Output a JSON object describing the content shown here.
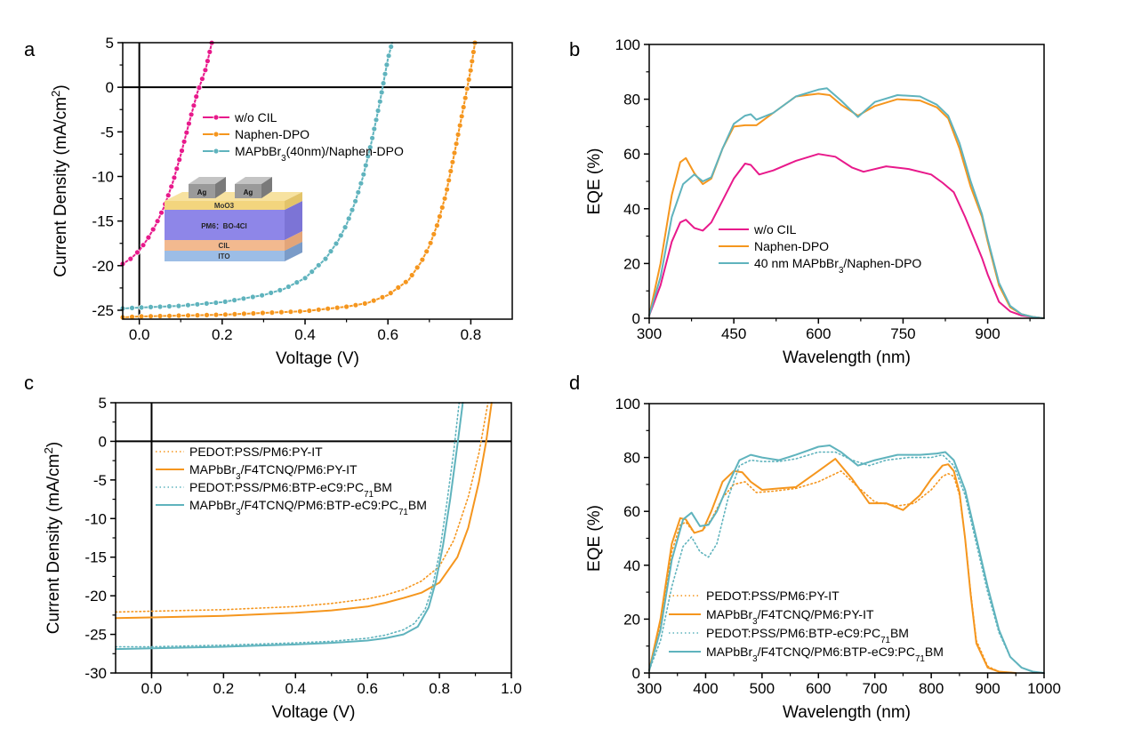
{
  "colors": {
    "pink": "#e8198b",
    "orange": "#f5961e",
    "teal": "#5fb3bd",
    "black": "#000000",
    "inset_ag": "#9a9a9a",
    "inset_moo3": "#f3d57e",
    "inset_active": "#8e86e8",
    "inset_cil": "#f2b98f",
    "inset_ito": "#9cbde6"
  },
  "panels": {
    "a": {
      "letter": "a"
    },
    "b": {
      "letter": "b"
    },
    "c": {
      "letter": "c"
    },
    "d": {
      "letter": "d"
    }
  },
  "inset": {
    "ag_left": "Ag",
    "ag_right": "Ag",
    "moo3": "MoO3",
    "active": "PM6：BO-4Cl",
    "cil": "CIL",
    "ito": "ITO"
  },
  "chart_data": [
    {
      "id": "a",
      "type": "line",
      "xlabel": "Voltage (V)",
      "ylabel": "Current Density (mA/cm²)",
      "xlim": [
        -0.04,
        0.9
      ],
      "ylim": [
        -26,
        5
      ],
      "xticks": [
        0.0,
        0.2,
        0.4,
        0.6,
        0.8
      ],
      "xtick_labels": [
        "0.0",
        "0.2",
        "0.4",
        "0.6",
        "0.8"
      ],
      "yticks": [
        5,
        0,
        -5,
        -10,
        -15,
        -20,
        -25
      ],
      "ytick_labels": [
        "5",
        "0",
        "-5",
        "-10",
        "-15",
        "-20",
        "-25"
      ],
      "legend_position": "center-left",
      "series": [
        {
          "name": "w/o CIL",
          "color_key": "pink",
          "markers": true,
          "x": [
            -0.04,
            -0.02,
            0.0,
            0.02,
            0.04,
            0.06,
            0.08,
            0.1,
            0.12,
            0.14,
            0.16,
            0.175
          ],
          "y": [
            -19.8,
            -19.2,
            -18.3,
            -17.0,
            -15.4,
            -13.4,
            -10.8,
            -7.6,
            -4.0,
            -0.6,
            2.0,
            5.0
          ]
        },
        {
          "name": "Naphen-DPO",
          "color_key": "orange",
          "markers": true,
          "x": [
            -0.04,
            0.0,
            0.1,
            0.2,
            0.3,
            0.4,
            0.5,
            0.55,
            0.6,
            0.65,
            0.68,
            0.7,
            0.72,
            0.74,
            0.76,
            0.78,
            0.8,
            0.81
          ],
          "y": [
            -25.8,
            -25.7,
            -25.6,
            -25.5,
            -25.3,
            -25.1,
            -24.6,
            -24.2,
            -23.3,
            -21.6,
            -19.6,
            -17.8,
            -15.3,
            -12.0,
            -7.5,
            -2.8,
            2.0,
            5.0
          ]
        },
        {
          "name": "MAPbBr₃(40nm)/Naphen-DPO",
          "color_key": "teal",
          "markers": true,
          "x": [
            -0.04,
            0.0,
            0.1,
            0.2,
            0.3,
            0.35,
            0.4,
            0.45,
            0.48,
            0.5,
            0.52,
            0.54,
            0.56,
            0.58,
            0.6,
            0.61
          ],
          "y": [
            -24.8,
            -24.7,
            -24.5,
            -24.1,
            -23.3,
            -22.6,
            -21.4,
            -19.2,
            -17.2,
            -15.4,
            -13.0,
            -10.0,
            -6.2,
            -1.8,
            3.2,
            5.0
          ]
        }
      ]
    },
    {
      "id": "b",
      "type": "line",
      "xlabel": "Wavelength (nm)",
      "ylabel": "EQE (%)",
      "xlim": [
        300,
        1000
      ],
      "ylim": [
        0,
        100
      ],
      "xticks": [
        300,
        450,
        600,
        750,
        900
      ],
      "xtick_labels": [
        "300",
        "450",
        "600",
        "750",
        "900"
      ],
      "yticks": [
        0,
        20,
        40,
        60,
        80,
        100
      ],
      "ytick_labels": [
        "0",
        "20",
        "40",
        "60",
        "80",
        "100"
      ],
      "legend_position": "bottom-left",
      "series": [
        {
          "name": "w/o CIL",
          "color_key": "pink",
          "x": [
            300,
            320,
            340,
            355,
            365,
            380,
            395,
            410,
            430,
            450,
            470,
            480,
            495,
            520,
            560,
            600,
            630,
            660,
            680,
            720,
            760,
            800,
            820,
            840,
            860,
            880,
            890,
            900,
            920,
            940,
            960,
            980,
            1000
          ],
          "y": [
            1,
            12,
            28,
            35,
            36,
            33,
            32,
            35,
            43,
            51,
            56.5,
            56,
            52.5,
            54,
            57.5,
            60,
            59,
            55,
            53.5,
            55.5,
            54.5,
            52.5,
            49.5,
            46,
            37,
            27,
            22,
            16,
            6,
            2.5,
            1,
            0.5,
            0
          ]
        },
        {
          "name": "Naphen-DPO",
          "color_key": "orange",
          "x": [
            300,
            320,
            340,
            355,
            365,
            380,
            395,
            410,
            430,
            450,
            470,
            490,
            520,
            560,
            600,
            620,
            640,
            670,
            700,
            740,
            780,
            810,
            830,
            850,
            870,
            890,
            900,
            920,
            940,
            960,
            980,
            1000
          ],
          "y": [
            1,
            20,
            45,
            57,
            58.5,
            53,
            49,
            51,
            62,
            70,
            70.5,
            70.5,
            75,
            81,
            82,
            81.5,
            78,
            74,
            77.5,
            80,
            79.5,
            77,
            73,
            62,
            48,
            37,
            28,
            12,
            4,
            1.5,
            0.5,
            0
          ]
        },
        {
          "name": "40 nm MAPbBr₃/Naphen-DPO",
          "color_key": "teal",
          "x": [
            300,
            320,
            340,
            360,
            380,
            395,
            410,
            430,
            450,
            470,
            480,
            490,
            520,
            560,
            600,
            615,
            640,
            670,
            700,
            740,
            780,
            810,
            830,
            850,
            870,
            890,
            900,
            920,
            940,
            960,
            980,
            1000
          ],
          "y": [
            1,
            15,
            37,
            49,
            52.5,
            50,
            51.5,
            62,
            71,
            74,
            74.5,
            72.5,
            75,
            81,
            83.5,
            84,
            79.5,
            73.5,
            79,
            81.5,
            81,
            78,
            74,
            64,
            50,
            38,
            29,
            13,
            4.5,
            1.5,
            0.5,
            0
          ]
        }
      ]
    },
    {
      "id": "c",
      "type": "line",
      "xlabel": "Voltage (V)",
      "ylabel": "Current Density (mA/cm²)",
      "xlim": [
        -0.1,
        1.0
      ],
      "ylim": [
        -30,
        5
      ],
      "xticks": [
        0.0,
        0.2,
        0.4,
        0.6,
        0.8,
        1.0
      ],
      "xtick_labels": [
        "0.0",
        "0.2",
        "0.4",
        "0.6",
        "0.8",
        "1.0"
      ],
      "yticks": [
        5,
        0,
        -5,
        -10,
        -15,
        -20,
        -25,
        -30
      ],
      "ytick_labels": [
        "5",
        "0",
        "-5",
        "-10",
        "-15",
        "-20",
        "-25",
        "-30"
      ],
      "legend_position": "top-left",
      "series": [
        {
          "name": "PEDOT:PSS/PM6:PY-IT",
          "color_key": "orange",
          "dotted": true,
          "x": [
            -0.1,
            0.0,
            0.1,
            0.2,
            0.3,
            0.4,
            0.5,
            0.6,
            0.65,
            0.7,
            0.75,
            0.8,
            0.84,
            0.88,
            0.91,
            0.935
          ],
          "y": [
            -22.1,
            -22.0,
            -21.9,
            -21.8,
            -21.6,
            -21.4,
            -21.0,
            -20.4,
            -19.9,
            -19.2,
            -18.1,
            -16.2,
            -12.8,
            -7.2,
            -1.5,
            5.0
          ]
        },
        {
          "name": "MAPbBr₃/F4TCNQ/PM6:PY-IT",
          "color_key": "orange",
          "dotted": false,
          "x": [
            -0.1,
            0.0,
            0.1,
            0.2,
            0.3,
            0.4,
            0.5,
            0.6,
            0.65,
            0.7,
            0.75,
            0.8,
            0.85,
            0.88,
            0.91,
            0.93,
            0.945
          ],
          "y": [
            -22.9,
            -22.8,
            -22.7,
            -22.6,
            -22.4,
            -22.2,
            -21.9,
            -21.4,
            -20.9,
            -20.3,
            -19.6,
            -18.3,
            -15.0,
            -11.2,
            -5.2,
            0.0,
            5.0
          ]
        },
        {
          "name": "PEDOT:PSS/PM6:BTP-eC9:PC₇₁BM",
          "color_key": "teal",
          "dotted": true,
          "x": [
            -0.1,
            0.0,
            0.2,
            0.4,
            0.5,
            0.6,
            0.65,
            0.7,
            0.73,
            0.76,
            0.78,
            0.8,
            0.82,
            0.84,
            0.855
          ],
          "y": [
            -26.6,
            -26.6,
            -26.4,
            -26.1,
            -25.9,
            -25.5,
            -25.1,
            -24.4,
            -23.6,
            -21.8,
            -19.0,
            -14.5,
            -8.2,
            -1.2,
            5.0
          ]
        },
        {
          "name": "MAPbBr₃/F4TCNQ/PM6:BTP-eC9:PC₇₁BM",
          "color_key": "teal",
          "dotted": false,
          "x": [
            -0.1,
            0.0,
            0.2,
            0.4,
            0.5,
            0.6,
            0.65,
            0.7,
            0.74,
            0.77,
            0.79,
            0.81,
            0.83,
            0.85,
            0.865
          ],
          "y": [
            -26.9,
            -26.8,
            -26.6,
            -26.3,
            -26.1,
            -25.8,
            -25.5,
            -25.0,
            -24.0,
            -21.5,
            -18.2,
            -13.5,
            -7.5,
            -0.5,
            5.0
          ]
        }
      ]
    },
    {
      "id": "d",
      "type": "line",
      "xlabel": "Wavelength (nm)",
      "ylabel": "EQE (%)",
      "xlim": [
        300,
        1000
      ],
      "ylim": [
        0,
        100
      ],
      "xticks": [
        300,
        400,
        500,
        600,
        700,
        800,
        900,
        1000
      ],
      "xtick_labels": [
        "300",
        "400",
        "500",
        "600",
        "700",
        "800",
        "900",
        "1000"
      ],
      "yticks": [
        0,
        20,
        40,
        60,
        80,
        100
      ],
      "ytick_labels": [
        "0",
        "20",
        "40",
        "60",
        "80",
        "100"
      ],
      "legend_position": "bottom-left",
      "series": [
        {
          "name": "PEDOT:PSS/PM6:PY-IT",
          "color_key": "orange",
          "dotted": true,
          "x": [
            300,
            320,
            340,
            355,
            365,
            380,
            395,
            410,
            430,
            450,
            470,
            490,
            520,
            560,
            600,
            640,
            670,
            700,
            740,
            770,
            800,
            820,
            830,
            840,
            850,
            860,
            870,
            880,
            900,
            920,
            950
          ],
          "y": [
            1,
            18,
            45,
            55,
            56,
            52,
            53,
            57,
            65,
            70,
            71,
            67,
            67.5,
            68.5,
            71,
            75,
            69,
            63.5,
            62,
            63,
            68,
            73,
            74,
            73,
            66,
            50,
            30,
            12,
            2.5,
            0.5,
            0
          ]
        },
        {
          "name": "MAPbBr₃/F4TCNQ/PM6:PY-IT",
          "color_key": "orange",
          "dotted": false,
          "x": [
            300,
            320,
            340,
            355,
            365,
            380,
            395,
            410,
            430,
            450,
            465,
            480,
            500,
            530,
            560,
            600,
            630,
            660,
            690,
            720,
            750,
            780,
            800,
            820,
            830,
            840,
            850,
            860,
            870,
            880,
            900,
            920,
            950
          ],
          "y": [
            1,
            20,
            48,
            57.5,
            57,
            52,
            53,
            60,
            71,
            75,
            74.5,
            71,
            68,
            68.5,
            69,
            75,
            79.5,
            72,
            63,
            63,
            60.5,
            66,
            72,
            77,
            77.5,
            75,
            67,
            50,
            29,
            11,
            2,
            0.5,
            0
          ]
        },
        {
          "name": "PEDOT:PSS/PM6:BTP-eC9:PC₇₁BM",
          "color_key": "teal",
          "dotted": true,
          "x": [
            300,
            320,
            340,
            360,
            375,
            390,
            405,
            420,
            440,
            460,
            480,
            500,
            530,
            560,
            600,
            630,
            660,
            690,
            720,
            760,
            800,
            820,
            840,
            860,
            880,
            900,
            920,
            940,
            960,
            980,
            1000
          ],
          "y": [
            1,
            12,
            32,
            47,
            50.5,
            45,
            43,
            48,
            65,
            77,
            79,
            78.5,
            78.5,
            79.5,
            82,
            82,
            79,
            77,
            79,
            80,
            80,
            81,
            77,
            66,
            48,
            30,
            15,
            6,
            2,
            0.5,
            0
          ]
        },
        {
          "name": "MAPbBr₃/F4TCNQ/PM6:BTP-eC9:PC₇₁BM",
          "color_key": "teal",
          "dotted": false,
          "x": [
            300,
            320,
            340,
            360,
            375,
            390,
            405,
            420,
            440,
            460,
            480,
            500,
            530,
            560,
            600,
            620,
            640,
            670,
            700,
            740,
            780,
            810,
            825,
            840,
            860,
            880,
            900,
            920,
            940,
            960,
            980,
            1000
          ],
          "y": [
            1,
            16,
            42,
            57,
            59.5,
            54.5,
            55,
            60,
            70,
            79,
            81,
            80,
            79,
            81,
            84,
            84.5,
            82,
            77,
            79,
            81,
            81,
            81.5,
            82,
            79,
            68,
            50,
            32,
            16,
            6,
            2,
            0.5,
            0
          ]
        }
      ]
    }
  ]
}
